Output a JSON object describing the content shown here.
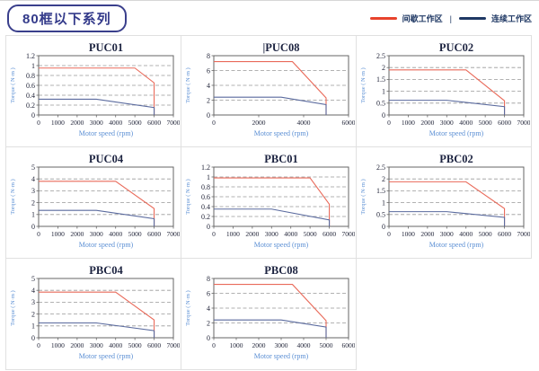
{
  "header": {
    "series_badge": "80框以下系列"
  },
  "legend": {
    "intermittent_label": "间歇工作区",
    "separator": "|",
    "continuous_label": "连续工作区",
    "intermittent_color": "#e8432c",
    "continuous_color": "#1f3864"
  },
  "colors": {
    "accent_red": "#e8432c",
    "accent_navy": "#1f3864",
    "curve_red": "#e96a5a",
    "curve_blue": "#5a6a9e",
    "grid_gray": "#999999",
    "axis_label_blue": "#5b8fd4",
    "tick_text": "#23263a",
    "title_text": "#1c2340",
    "plot_border": "#666666"
  },
  "chart_data": [
    {
      "type": "line",
      "title": "PUC01",
      "title_prefix": "",
      "xlabel": "Motor speed (rpm)",
      "ylabel": "Torque ( N·m )",
      "xlim": [
        0,
        7000
      ],
      "ylim": [
        0,
        1.2
      ],
      "xticks": [
        0,
        1000,
        2000,
        3000,
        4000,
        5000,
        6000,
        7000
      ],
      "yticks": [
        0,
        0.2,
        0.4,
        0.6,
        0.8,
        1,
        1.2
      ],
      "grid": "dashed-horizontal",
      "legend_position": "top-right-page",
      "series": [
        {
          "name": "间歇工作区",
          "color": "#e96a5a",
          "points": [
            [
              0,
              0.95
            ],
            [
              5000,
              0.95
            ],
            [
              6000,
              0.65
            ],
            [
              6000,
              0
            ]
          ]
        },
        {
          "name": "连续工作区",
          "color": "#5a6a9e",
          "points": [
            [
              0,
              0.32
            ],
            [
              3000,
              0.32
            ],
            [
              6000,
              0.15
            ],
            [
              6000,
              0
            ]
          ]
        }
      ]
    },
    {
      "type": "line",
      "title": "PUC08",
      "title_prefix": "|",
      "xlabel": "Motor speed (rpm)",
      "ylabel": "Torque ( N·m )",
      "xlim": [
        0,
        6000
      ],
      "ylim": [
        0,
        8
      ],
      "xticks": [
        0,
        2000,
        4000,
        6000
      ],
      "yticks": [
        0,
        2,
        4,
        6,
        8
      ],
      "grid": "dashed-horizontal",
      "legend_position": "top-right-page",
      "series": [
        {
          "name": "间歇工作区",
          "color": "#e96a5a",
          "points": [
            [
              0,
              7.2
            ],
            [
              3500,
              7.2
            ],
            [
              5000,
              2.3
            ],
            [
              5000,
              0
            ]
          ]
        },
        {
          "name": "连续工作区",
          "color": "#5a6a9e",
          "points": [
            [
              0,
              2.4
            ],
            [
              3000,
              2.4
            ],
            [
              5000,
              1.4
            ],
            [
              5000,
              0
            ]
          ]
        }
      ]
    },
    {
      "type": "line",
      "title": "PUC02",
      "title_prefix": "",
      "xlabel": "Motor speed (rpm)",
      "ylabel": "Torque ( N·m )",
      "xlim": [
        0,
        7000
      ],
      "ylim": [
        0,
        2.5
      ],
      "xticks": [
        0,
        1000,
        2000,
        3000,
        4000,
        5000,
        6000,
        7000
      ],
      "yticks": [
        0,
        0.5,
        1,
        1.5,
        2,
        2.5
      ],
      "grid": "dashed-horizontal",
      "legend_position": "top-right-page",
      "series": [
        {
          "name": "间歇工作区",
          "color": "#e96a5a",
          "points": [
            [
              0,
              1.9
            ],
            [
              4000,
              1.9
            ],
            [
              6000,
              0.6
            ],
            [
              6000,
              0
            ]
          ]
        },
        {
          "name": "连续工作区",
          "color": "#5a6a9e",
          "points": [
            [
              0,
              0.62
            ],
            [
              3000,
              0.62
            ],
            [
              6000,
              0.35
            ],
            [
              6000,
              0
            ]
          ]
        }
      ]
    },
    {
      "type": "line",
      "title": "PUC04",
      "title_prefix": "",
      "xlabel": "Motor speed (rpm)",
      "ylabel": "Torque ( N·m )",
      "xlim": [
        0,
        7000
      ],
      "ylim": [
        0,
        5
      ],
      "xticks": [
        0,
        1000,
        2000,
        3000,
        4000,
        5000,
        6000,
        7000
      ],
      "yticks": [
        0,
        1,
        2,
        3,
        4,
        5
      ],
      "grid": "dashed-horizontal",
      "legend_position": "top-right-page",
      "series": [
        {
          "name": "间歇工作区",
          "color": "#e96a5a",
          "points": [
            [
              0,
              3.8
            ],
            [
              4000,
              3.8
            ],
            [
              6000,
              1.5
            ],
            [
              6000,
              0
            ]
          ]
        },
        {
          "name": "连续工作区",
          "color": "#5a6a9e",
          "points": [
            [
              0,
              1.35
            ],
            [
              3000,
              1.35
            ],
            [
              6000,
              0.65
            ],
            [
              6000,
              0
            ]
          ]
        }
      ]
    },
    {
      "type": "line",
      "title": "PBC01",
      "title_prefix": "",
      "xlabel": "Motor speed (rpm)",
      "ylabel": "Torque ( N·m )",
      "xlim": [
        0,
        7000
      ],
      "ylim": [
        0,
        1.2
      ],
      "xticks": [
        0,
        1000,
        2000,
        3000,
        4000,
        5000,
        6000,
        7000
      ],
      "yticks": [
        0,
        0.2,
        0.4,
        0.6,
        0.8,
        1,
        1.2
      ],
      "grid": "dashed-horizontal",
      "legend_position": "top-right-page",
      "series": [
        {
          "name": "间歇工作区",
          "color": "#e96a5a",
          "points": [
            [
              0,
              0.98
            ],
            [
              5000,
              0.98
            ],
            [
              6000,
              0.45
            ],
            [
              6000,
              0
            ]
          ]
        },
        {
          "name": "连续工作区",
          "color": "#5a6a9e",
          "points": [
            [
              0,
              0.35
            ],
            [
              3000,
              0.35
            ],
            [
              6000,
              0.13
            ],
            [
              6000,
              0
            ]
          ]
        }
      ]
    },
    {
      "type": "line",
      "title": "PBC02",
      "title_prefix": "",
      "xlabel": "Motor speed (rpm)",
      "ylabel": "Torque ( N·m )",
      "xlim": [
        0,
        7000
      ],
      "ylim": [
        0,
        2.5
      ],
      "xticks": [
        0,
        1000,
        2000,
        3000,
        4000,
        5000,
        6000,
        7000
      ],
      "yticks": [
        0,
        0.5,
        1,
        1.5,
        2,
        2.5
      ],
      "grid": "dashed-horizontal",
      "legend_position": "top-right-page",
      "series": [
        {
          "name": "间歇工作区",
          "color": "#e96a5a",
          "points": [
            [
              0,
              1.88
            ],
            [
              4000,
              1.88
            ],
            [
              6000,
              0.75
            ],
            [
              6000,
              0
            ]
          ]
        },
        {
          "name": "连续工作区",
          "color": "#5a6a9e",
          "points": [
            [
              0,
              0.62
            ],
            [
              3000,
              0.62
            ],
            [
              6000,
              0.38
            ],
            [
              6000,
              0
            ]
          ]
        }
      ]
    },
    {
      "type": "line",
      "title": "PBC04",
      "title_prefix": "",
      "xlabel": "Motor speed (rpm)",
      "ylabel": "Torque ( N·m )",
      "xlim": [
        0,
        7000
      ],
      "ylim": [
        0,
        5
      ],
      "xticks": [
        0,
        1000,
        2000,
        3000,
        4000,
        5000,
        6000,
        7000
      ],
      "yticks": [
        0,
        1,
        2,
        3,
        4,
        5
      ],
      "grid": "dashed-horizontal",
      "legend_position": "top-right-page",
      "series": [
        {
          "name": "间歇工作区",
          "color": "#e96a5a",
          "points": [
            [
              0,
              3.85
            ],
            [
              4000,
              3.85
            ],
            [
              6000,
              1.5
            ],
            [
              6000,
              0
            ]
          ]
        },
        {
          "name": "连续工作区",
          "color": "#5a6a9e",
          "points": [
            [
              0,
              1.25
            ],
            [
              3000,
              1.25
            ],
            [
              6000,
              0.6
            ],
            [
              6000,
              0
            ]
          ]
        }
      ]
    },
    {
      "type": "line",
      "title": "PBC08",
      "title_prefix": "",
      "xlabel": "Motor speed (rpm)",
      "ylabel": "Torque ( N·m )",
      "xlim": [
        0,
        6000
      ],
      "ylim": [
        0,
        8
      ],
      "xticks": [
        0,
        1000,
        2000,
        3000,
        4000,
        5000,
        6000
      ],
      "yticks": [
        0,
        2,
        4,
        6,
        8
      ],
      "grid": "dashed-horizontal",
      "legend_position": "top-right-page",
      "series": [
        {
          "name": "间歇工作区",
          "color": "#e96a5a",
          "points": [
            [
              0,
              7.2
            ],
            [
              3500,
              7.2
            ],
            [
              5000,
              2.3
            ],
            [
              5000,
              0
            ]
          ]
        },
        {
          "name": "连续工作区",
          "color": "#5a6a9e",
          "points": [
            [
              0,
              2.4
            ],
            [
              3000,
              2.4
            ],
            [
              5000,
              1.45
            ],
            [
              5000,
              0
            ]
          ]
        }
      ]
    }
  ]
}
